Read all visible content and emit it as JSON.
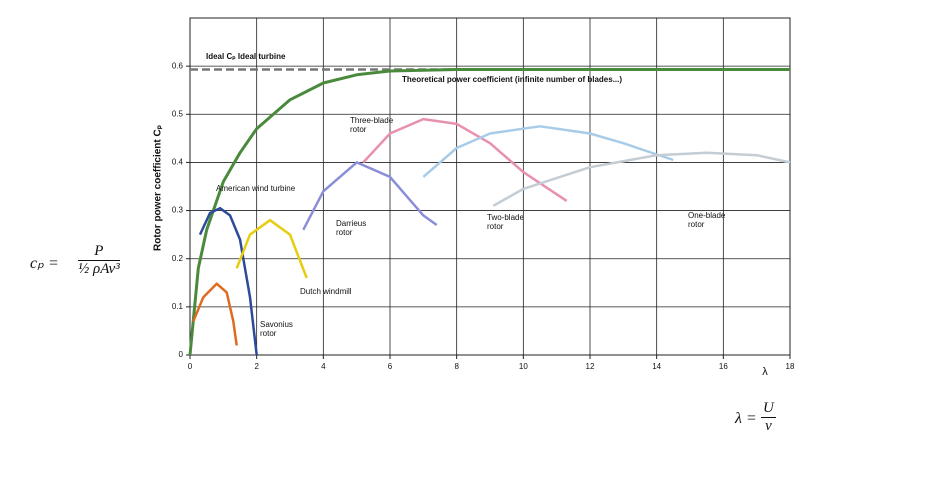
{
  "chart_data": {
    "type": "line",
    "y_label": "Rotor power coefficient Cₚ",
    "x_label": "λ",
    "xlim": [
      0,
      18
    ],
    "xticks": [
      0,
      2,
      4,
      6,
      8,
      10,
      12,
      14,
      16,
      18
    ],
    "ylim": [
      0,
      0.7
    ],
    "yticks": [
      0,
      0.1,
      0.2,
      0.3,
      0.4,
      0.5,
      0.6
    ],
    "grid": true,
    "series": [
      {
        "name": "Ideal Cₚ Ideal turbine",
        "color": "#777777",
        "style": "dashed",
        "x": [
          0,
          18
        ],
        "values": [
          0.593,
          0.593
        ]
      },
      {
        "name": "Theoretical power coefficient (infinite number of blades...)",
        "color": "#4a8a3c",
        "style": "solid",
        "x": [
          0,
          0.25,
          0.5,
          1,
          1.5,
          2,
          3,
          4,
          5,
          6,
          8,
          18
        ],
        "values": [
          0,
          0.18,
          0.26,
          0.36,
          0.42,
          0.47,
          0.53,
          0.565,
          0.582,
          0.59,
          0.593,
          0.593
        ]
      },
      {
        "name": "American wind turbine",
        "color": "#2e4a9a",
        "style": "solid",
        "x": [
          0.3,
          0.6,
          0.9,
          1.2,
          1.5,
          1.8,
          2
        ],
        "values": [
          0.25,
          0.295,
          0.305,
          0.29,
          0.24,
          0.12,
          0
        ]
      },
      {
        "name": "Savonius rotor",
        "color": "#e06a20",
        "style": "solid",
        "x": [
          0.1,
          0.4,
          0.8,
          1.1,
          1.3,
          1.4
        ],
        "values": [
          0.07,
          0.12,
          0.148,
          0.13,
          0.07,
          0.02
        ]
      },
      {
        "name": "Dutch windmill",
        "color": "#e8cc10",
        "style": "solid",
        "x": [
          1.4,
          1.8,
          2.4,
          3,
          3.5
        ],
        "values": [
          0.18,
          0.25,
          0.28,
          0.25,
          0.16
        ]
      },
      {
        "name": "Darrieus rotor",
        "color": "#8a8ed8",
        "style": "solid",
        "x": [
          3.4,
          4,
          5,
          6,
          7,
          7.4
        ],
        "values": [
          0.26,
          0.34,
          0.4,
          0.37,
          0.29,
          0.27
        ]
      },
      {
        "name": "Three-blade rotor",
        "color": "#e890b0",
        "style": "solid",
        "x": [
          5.2,
          6,
          7,
          8,
          9,
          10,
          11.3
        ],
        "values": [
          0.4,
          0.46,
          0.49,
          0.48,
          0.44,
          0.38,
          0.32
        ]
      },
      {
        "name": "Two-blade rotor",
        "color": "#a8cce8",
        "style": "solid",
        "x": [
          7,
          8,
          9,
          10.5,
          12,
          13,
          14.5
        ],
        "values": [
          0.37,
          0.43,
          0.46,
          0.475,
          0.46,
          0.44,
          0.405
        ]
      },
      {
        "name": "One-blade rotor",
        "color": "#c4ccd4",
        "style": "solid",
        "x": [
          9.1,
          10,
          12,
          14,
          15.5,
          17,
          18
        ],
        "values": [
          0.31,
          0.345,
          0.39,
          0.415,
          0.42,
          0.415,
          0.4
        ]
      }
    ],
    "equations": [
      {
        "lhs": "cₚ =",
        "numerator": "P",
        "denominator": "½ ρAv³"
      },
      {
        "lhs": "λ =",
        "numerator": "U",
        "denominator": "v"
      }
    ]
  }
}
